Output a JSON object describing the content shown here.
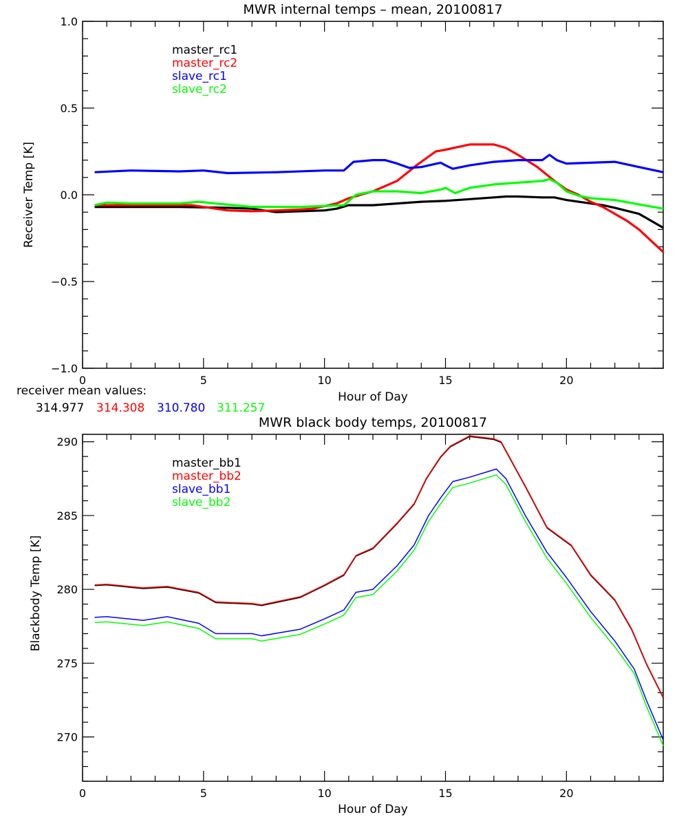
{
  "chart_data": [
    {
      "type": "line",
      "title": "MWR internal temps – mean, 20100817",
      "xlabel": "Hour of Day",
      "ylabel": "Receiver Temp [K]",
      "xlim": [
        0,
        24
      ],
      "ylim": [
        -1.0,
        1.0
      ],
      "xticks": [
        0,
        5,
        10,
        15,
        20
      ],
      "xtick_labels": [
        "0",
        "5",
        "10",
        "15",
        "20"
      ],
      "yticks": [
        -1.0,
        -0.5,
        0.0,
        0.5,
        1.0
      ],
      "ytick_labels": [
        "−1.0",
        "−0.5",
        "0.0",
        "0.5",
        "1.0"
      ],
      "grid": false,
      "legend_position": "top-left",
      "series": [
        {
          "name": "master_rc1",
          "color": "#000000",
          "x": [
            0.5,
            2,
            4,
            6,
            7,
            8,
            9,
            10,
            10.5,
            11,
            12,
            13,
            14,
            15,
            16,
            17,
            17.5,
            18,
            19,
            19.5,
            20,
            21,
            21.5,
            22,
            23,
            24
          ],
          "y": [
            -0.07,
            -0.07,
            -0.07,
            -0.075,
            -0.08,
            -0.1,
            -0.095,
            -0.09,
            -0.08,
            -0.06,
            -0.06,
            -0.05,
            -0.04,
            -0.035,
            -0.025,
            -0.015,
            -0.01,
            -0.01,
            -0.015,
            -0.015,
            -0.03,
            -0.05,
            -0.06,
            -0.075,
            -0.11,
            -0.19
          ]
        },
        {
          "name": "master_rc2",
          "color": "#ff0000",
          "x": [
            0.5,
            2,
            4,
            4.5,
            6,
            7,
            8,
            9,
            9.5,
            10,
            10.5,
            11,
            12,
            13,
            13.8,
            14.6,
            15,
            15.5,
            16,
            17,
            17.5,
            18,
            18.8,
            19.5,
            20,
            20.5,
            21,
            21.5,
            22.5,
            23,
            24
          ],
          "y": [
            -0.06,
            -0.06,
            -0.06,
            -0.06,
            -0.09,
            -0.095,
            -0.09,
            -0.085,
            -0.08,
            -0.065,
            -0.05,
            -0.02,
            0.02,
            0.08,
            0.17,
            0.25,
            0.26,
            0.275,
            0.29,
            0.29,
            0.27,
            0.23,
            0.16,
            0.08,
            0.03,
            0.0,
            -0.04,
            -0.07,
            -0.15,
            -0.2,
            -0.33
          ]
        },
        {
          "name": "slave_rc1",
          "color": "#0000ff",
          "x": [
            0.5,
            2,
            4,
            5,
            6,
            8,
            10,
            10.8,
            11.2,
            12,
            12.5,
            13,
            13.5,
            14,
            14.8,
            15,
            15.3,
            16,
            17,
            18,
            19,
            19.3,
            19.6,
            20,
            21,
            22,
            23,
            24
          ],
          "y": [
            0.13,
            0.14,
            0.135,
            0.14,
            0.125,
            0.13,
            0.14,
            0.14,
            0.19,
            0.2,
            0.2,
            0.18,
            0.155,
            0.16,
            0.185,
            0.17,
            0.15,
            0.17,
            0.19,
            0.2,
            0.2,
            0.23,
            0.2,
            0.18,
            0.185,
            0.19,
            0.16,
            0.13
          ]
        },
        {
          "name": "slave_rc2",
          "color": "#00ff00",
          "x": [
            0.5,
            1,
            2,
            4,
            4.8,
            5.5,
            7,
            9,
            10.8,
            11.3,
            12,
            13,
            14,
            14.8,
            15,
            15.4,
            16,
            17,
            18,
            19,
            19.3,
            19.6,
            20,
            20.5,
            21,
            22,
            23,
            24
          ],
          "y": [
            -0.06,
            -0.045,
            -0.05,
            -0.05,
            -0.04,
            -0.05,
            -0.07,
            -0.07,
            -0.06,
            0.0,
            0.02,
            0.02,
            0.01,
            0.03,
            0.04,
            0.01,
            0.04,
            0.06,
            0.07,
            0.08,
            0.09,
            0.07,
            0.02,
            -0.005,
            -0.02,
            -0.03,
            -0.055,
            -0.08
          ]
        }
      ],
      "annotation": {
        "label": "receiver mean values:",
        "values": [
          {
            "text": "314.977",
            "color": "#000000"
          },
          {
            "text": "314.308",
            "color": "#ff0000"
          },
          {
            "text": "310.780",
            "color": "#0000ff"
          },
          {
            "text": "311.257",
            "color": "#00ff00"
          }
        ]
      }
    },
    {
      "type": "line",
      "title": "MWR black body temps, 20100817",
      "xlabel": "Hour of Day",
      "ylabel": "Blackbody Temp [K]",
      "xlim": [
        0,
        24
      ],
      "ylim": [
        267,
        290.5
      ],
      "xticks": [
        0,
        5,
        10,
        15,
        20
      ],
      "xtick_labels": [
        "0",
        "5",
        "10",
        "15",
        "20"
      ],
      "yticks": [
        270,
        275,
        280,
        285,
        290
      ],
      "ytick_labels": [
        "270",
        "275",
        "280",
        "285",
        "290"
      ],
      "grid": false,
      "legend_position": "top-left",
      "series": [
        {
          "name": "master_bb1",
          "color": "#000000",
          "x": [
            0.5,
            1,
            2.5,
            3.5,
            4.8,
            5.5,
            7,
            7.4,
            9,
            10,
            10.8,
            11.3,
            12,
            13,
            13.7,
            14.2,
            14.8,
            15.2,
            16,
            17,
            17.3,
            18.3,
            19.2,
            20.2,
            21,
            22,
            22.7,
            23.3,
            24
          ],
          "y": [
            280.25,
            280.3,
            280.05,
            280.15,
            279.75,
            279.1,
            279.0,
            278.9,
            279.45,
            280.25,
            280.95,
            282.25,
            282.75,
            284.45,
            285.75,
            287.45,
            288.95,
            289.65,
            290.35,
            290.15,
            289.95,
            286.95,
            284.15,
            282.95,
            280.95,
            279.25,
            277.25,
            274.95,
            272.65
          ]
        },
        {
          "name": "master_bb2",
          "color": "#ff0000",
          "x": [
            0.5,
            1,
            2.5,
            3.5,
            4.8,
            5.5,
            7,
            7.4,
            9,
            10,
            10.8,
            11.3,
            12,
            13,
            13.7,
            14.2,
            14.8,
            15.2,
            16,
            17,
            17.3,
            18.3,
            19.2,
            20.2,
            21,
            22,
            22.7,
            23.3,
            24
          ],
          "y": [
            280.3,
            280.35,
            280.1,
            280.2,
            279.8,
            279.15,
            279.05,
            278.95,
            279.5,
            280.3,
            281.0,
            282.3,
            282.8,
            284.5,
            285.8,
            287.5,
            289.0,
            289.7,
            290.4,
            290.2,
            290.0,
            287.0,
            284.2,
            283.0,
            281.0,
            279.3,
            277.3,
            275.0,
            272.7
          ]
        },
        {
          "name": "slave_bb1",
          "color": "#0000ff",
          "x": [
            0.5,
            1,
            2.5,
            3.5,
            4.8,
            5.5,
            7,
            7.4,
            9,
            10,
            10.8,
            11.3,
            12,
            13,
            13.7,
            14.3,
            14.8,
            15.3,
            16,
            16.8,
            17.1,
            17.5,
            18.3,
            19.2,
            20,
            21,
            22,
            22.8,
            23.3,
            24
          ],
          "y": [
            278.1,
            278.15,
            277.9,
            278.15,
            277.7,
            277.0,
            277.0,
            276.85,
            277.3,
            278.0,
            278.6,
            279.8,
            280.0,
            281.6,
            283.0,
            285.0,
            286.2,
            287.3,
            287.6,
            288.0,
            288.15,
            287.5,
            285.0,
            282.5,
            280.8,
            278.5,
            276.5,
            274.6,
            272.5,
            269.8
          ]
        },
        {
          "name": "slave_bb2",
          "color": "#00ff00",
          "x": [
            0.5,
            1,
            2.5,
            3.5,
            4.8,
            5.5,
            7,
            7.4,
            9,
            10,
            10.8,
            11.3,
            12,
            13,
            13.7,
            14.3,
            14.8,
            15.3,
            16,
            16.8,
            17.1,
            17.5,
            18.3,
            19.2,
            20,
            21,
            22,
            22.8,
            23.3,
            24
          ],
          "y": [
            277.75,
            277.8,
            277.55,
            277.8,
            277.35,
            276.65,
            276.65,
            276.5,
            276.95,
            277.65,
            278.25,
            279.45,
            279.65,
            281.25,
            282.65,
            284.6,
            285.8,
            286.9,
            287.2,
            287.6,
            287.75,
            287.1,
            284.6,
            282.1,
            280.4,
            278.1,
            276.1,
            274.3,
            272.1,
            269.4
          ]
        }
      ]
    }
  ]
}
